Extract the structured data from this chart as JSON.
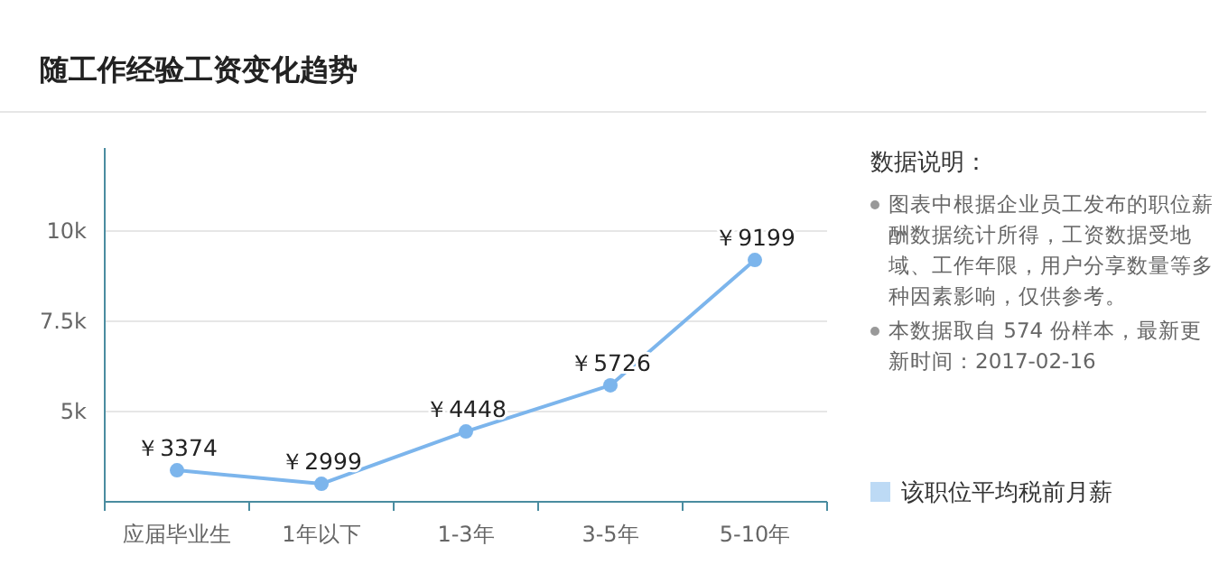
{
  "chart_data": {
    "type": "line",
    "title": "随工作经验工资变化趋势",
    "categories": [
      "应届毕业生",
      "1年以下",
      "1-3年",
      "3-5年",
      "5-10年"
    ],
    "series": [
      {
        "name": "该职位平均税前月薪",
        "color": "#7cb5ec",
        "values": [
          3374,
          2999,
          4448,
          5726,
          9199
        ],
        "value_labels": [
          "￥3374",
          "￥2999",
          "￥4448",
          "￥5726",
          "￥9199"
        ]
      }
    ],
    "ylim": [
      2500,
      12300
    ],
    "yticks": [
      {
        "value": 5000,
        "label": "5k"
      },
      {
        "value": 7500,
        "label": "7.5k"
      },
      {
        "value": 10000,
        "label": "10k"
      }
    ],
    "grid": "y",
    "legend": "right",
    "marker": "circle",
    "annotations": [
      "数据说明：",
      "图表中根据企业员工发布的职位薪酬数据统计所得，工资数据受地域、工作年限，用户分享数量等多种因素影响，仅供参考。",
      "本数据取自 574 份样本，最新更新时间：2017-02-16"
    ]
  }
}
